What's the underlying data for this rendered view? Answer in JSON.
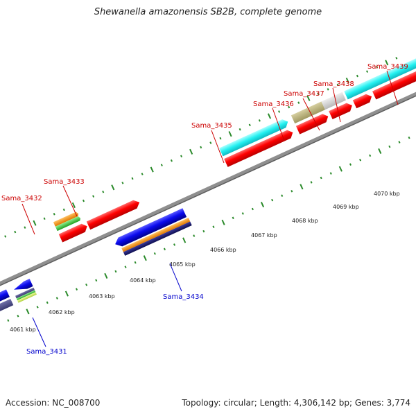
{
  "title": "Shewanella amazonensis SB2B, complete genome",
  "footer": {
    "accession": "Accession: NC_008700",
    "summary": "Topology: circular; Length: 4,306,142 bp; Genes: 3,774"
  },
  "colors": {
    "backbone": "#8c8c8c",
    "tick": "#2a8a2a",
    "forward_label": "#cc0000",
    "reverse_label": "#0000cc"
  },
  "scale_labels": [
    "4061 kbp",
    "4062 kbp",
    "4063 kbp",
    "4064 kbp",
    "4065 kbp",
    "4066 kbp",
    "4067 kbp",
    "4068 kbp",
    "4069 kbp",
    "4070 kbp"
  ],
  "genes": [
    {
      "name": "Sama_3431",
      "strand": "reverse"
    },
    {
      "name": "Sama_3432",
      "strand": "forward"
    },
    {
      "name": "Sama_3433",
      "strand": "forward"
    },
    {
      "name": "Sama_3434",
      "strand": "reverse"
    },
    {
      "name": "Sama_3435",
      "strand": "forward"
    },
    {
      "name": "Sama_3436",
      "strand": "forward"
    },
    {
      "name": "Sama_3437",
      "strand": "forward"
    },
    {
      "name": "Sama_3438",
      "strand": "forward"
    },
    {
      "name": "Sama_3439",
      "strand": "forward"
    }
  ]
}
